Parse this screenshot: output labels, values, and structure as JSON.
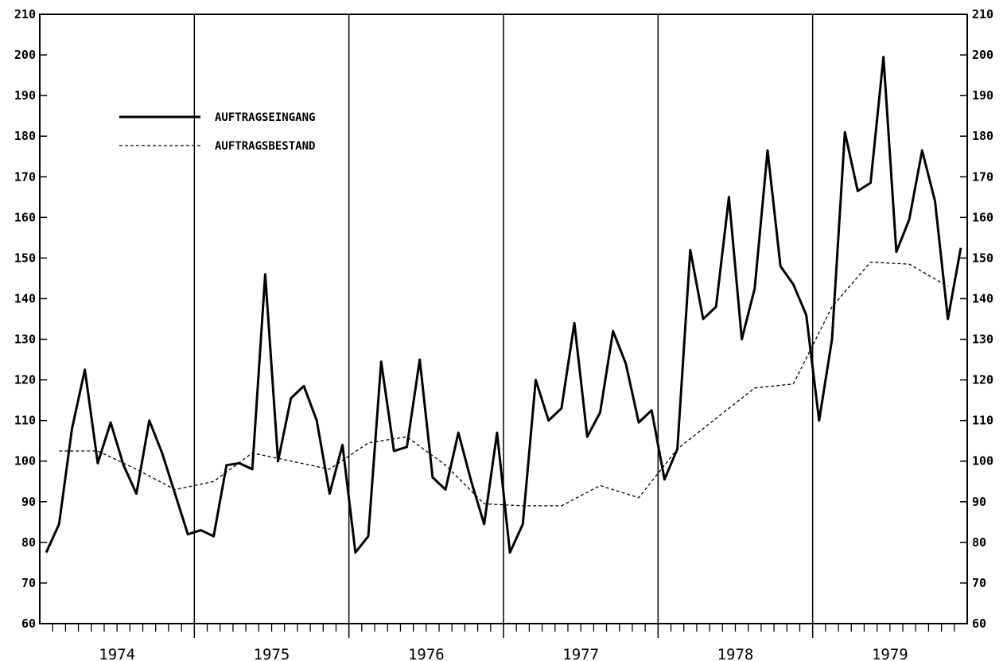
{
  "chart_data": {
    "type": "line",
    "title": "",
    "xlabel": "",
    "ylabel": "",
    "ylim": [
      60,
      210
    ],
    "yticks": [
      60,
      70,
      80,
      90,
      100,
      110,
      120,
      130,
      140,
      150,
      160,
      170,
      180,
      190,
      200,
      210
    ],
    "y_axis_both_sides": true,
    "grid": "vertical year separators only",
    "legend_position": "top-left",
    "x_unit": "month",
    "years": [
      "1974",
      "1975",
      "1976",
      "1977",
      "1978",
      "1979"
    ],
    "series": [
      {
        "name": "AUFTRAGSEINGANG",
        "style": "solid-bold",
        "color": "#000000",
        "points": [
          {
            "x": "1974-01",
            "y": 77.5
          },
          {
            "x": "1974-02",
            "y": 84.5
          },
          {
            "x": "1974-03",
            "y": 108
          },
          {
            "x": "1974-04",
            "y": 122.5
          },
          {
            "x": "1974-05",
            "y": 99.5
          },
          {
            "x": "1974-06",
            "y": 109.5
          },
          {
            "x": "1974-07",
            "y": 99
          },
          {
            "x": "1974-08",
            "y": 92
          },
          {
            "x": "1974-09",
            "y": 110
          },
          {
            "x": "1974-10",
            "y": 102
          },
          {
            "x": "1974-11",
            "y": 92
          },
          {
            "x": "1974-12",
            "y": 82
          },
          {
            "x": "1975-01",
            "y": 83
          },
          {
            "x": "1975-02",
            "y": 81.5
          },
          {
            "x": "1975-03",
            "y": 99
          },
          {
            "x": "1975-04",
            "y": 99.5
          },
          {
            "x": "1975-05",
            "y": 98
          },
          {
            "x": "1975-06",
            "y": 146
          },
          {
            "x": "1975-07",
            "y": 100
          },
          {
            "x": "1975-08",
            "y": 115.5
          },
          {
            "x": "1975-09",
            "y": 118.5
          },
          {
            "x": "1975-10",
            "y": 110
          },
          {
            "x": "1975-11",
            "y": 92
          },
          {
            "x": "1975-12",
            "y": 104
          },
          {
            "x": "1976-01",
            "y": 77.5
          },
          {
            "x": "1976-02",
            "y": 81.5
          },
          {
            "x": "1976-03",
            "y": 124.5
          },
          {
            "x": "1976-04",
            "y": 102.5
          },
          {
            "x": "1976-05",
            "y": 103.5
          },
          {
            "x": "1976-06",
            "y": 125
          },
          {
            "x": "1976-07",
            "y": 96
          },
          {
            "x": "1976-08",
            "y": 93
          },
          {
            "x": "1976-09",
            "y": 107
          },
          {
            "x": "1976-10",
            "y": 95
          },
          {
            "x": "1976-11",
            "y": 84.5
          },
          {
            "x": "1976-12",
            "y": 107
          },
          {
            "x": "1977-01",
            "y": 77.5
          },
          {
            "x": "1977-02",
            "y": 84.5
          },
          {
            "x": "1977-03",
            "y": 120
          },
          {
            "x": "1977-04",
            "y": 110
          },
          {
            "x": "1977-05",
            "y": 113
          },
          {
            "x": "1977-06",
            "y": 134
          },
          {
            "x": "1977-07",
            "y": 106
          },
          {
            "x": "1977-08",
            "y": 112
          },
          {
            "x": "1977-09",
            "y": 132
          },
          {
            "x": "1977-10",
            "y": 124
          },
          {
            "x": "1977-11",
            "y": 109.5
          },
          {
            "x": "1977-12",
            "y": 112.5
          },
          {
            "x": "1978-01",
            "y": 95.5
          },
          {
            "x": "1978-02",
            "y": 103
          },
          {
            "x": "1978-03",
            "y": 152
          },
          {
            "x": "1978-04",
            "y": 135
          },
          {
            "x": "1978-05",
            "y": 138
          },
          {
            "x": "1978-06",
            "y": 165
          },
          {
            "x": "1978-07",
            "y": 130
          },
          {
            "x": "1978-08",
            "y": 142.5
          },
          {
            "x": "1978-09",
            "y": 176.5
          },
          {
            "x": "1978-10",
            "y": 148
          },
          {
            "x": "1978-11",
            "y": 143.5
          },
          {
            "x": "1978-12",
            "y": 136
          },
          {
            "x": "1979-01",
            "y": 110
          },
          {
            "x": "1979-02",
            "y": 130
          },
          {
            "x": "1979-03",
            "y": 181
          },
          {
            "x": "1979-04",
            "y": 166.5
          },
          {
            "x": "1979-05",
            "y": 168.5
          },
          {
            "x": "1979-06",
            "y": 199.5
          },
          {
            "x": "1979-07",
            "y": 151.5
          },
          {
            "x": "1979-08",
            "y": 159.5
          },
          {
            "x": "1979-09",
            "y": 176.5
          },
          {
            "x": "1979-10",
            "y": 164
          },
          {
            "x": "1979-11",
            "y": 135
          },
          {
            "x": "1979-12",
            "y": 152.5
          }
        ]
      },
      {
        "name": "AUFTRAGSBESTAND",
        "style": "dashed",
        "color": "#000000",
        "points": [
          {
            "x": "1974-02",
            "y": 102.5
          },
          {
            "x": "1974-05",
            "y": 102.5
          },
          {
            "x": "1974-08",
            "y": 98
          },
          {
            "x": "1974-11",
            "y": 93
          },
          {
            "x": "1975-02",
            "y": 95
          },
          {
            "x": "1975-05",
            "y": 102
          },
          {
            "x": "1975-08",
            "y": 100
          },
          {
            "x": "1975-11",
            "y": 98
          },
          {
            "x": "1976-02",
            "y": 104.5
          },
          {
            "x": "1976-05",
            "y": 106
          },
          {
            "x": "1976-08",
            "y": 99
          },
          {
            "x": "1976-11",
            "y": 89.5
          },
          {
            "x": "1977-02",
            "y": 89
          },
          {
            "x": "1977-05",
            "y": 89
          },
          {
            "x": "1977-08",
            "y": 94
          },
          {
            "x": "1977-11",
            "y": 91
          },
          {
            "x": "1978-02",
            "y": 103
          },
          {
            "x": "1978-05",
            "y": 110.5
          },
          {
            "x": "1978-08",
            "y": 118
          },
          {
            "x": "1978-11",
            "y": 119
          },
          {
            "x": "1979-02",
            "y": 138
          },
          {
            "x": "1979-05",
            "y": 149
          },
          {
            "x": "1979-08",
            "y": 148.5
          },
          {
            "x": "1979-11",
            "y": 143
          }
        ]
      }
    ]
  }
}
